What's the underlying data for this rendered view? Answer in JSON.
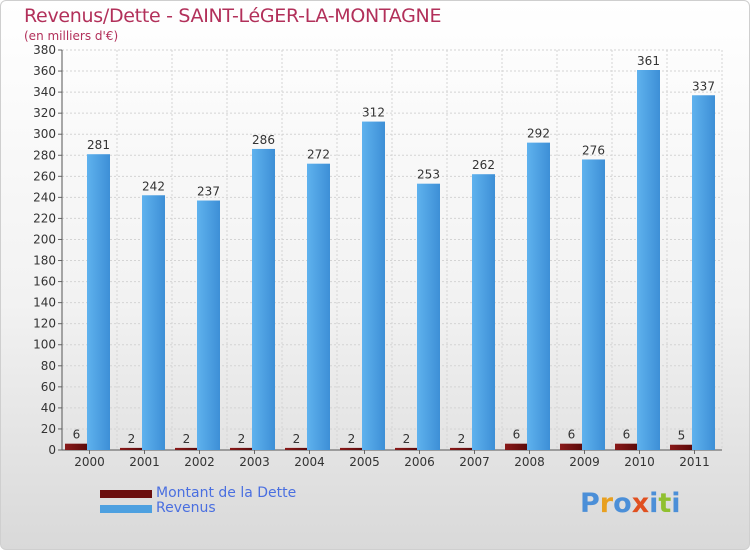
{
  "header": {
    "title": "Revenus/Dette - SAINT-LéGER-LA-MONTAGNE",
    "subtitle": "(en milliers d'€)"
  },
  "legend": {
    "items": [
      {
        "label": "Montant de la Dette",
        "color": "#6b0f0f"
      },
      {
        "label": "Revenus",
        "color": "#4da0e0"
      }
    ]
  },
  "logo": {
    "text": "Proxiti",
    "letter_colors": [
      "#4b8fd8",
      "#e8a020",
      "#4b8fd8",
      "#e05020",
      "#4b8fd8",
      "#90c030",
      "#4b8fd8"
    ]
  },
  "chart_data": {
    "type": "bar",
    "title": "Revenus/Dette - SAINT-LéGER-LA-MONTAGNE",
    "ylabel": "(en milliers d'€)",
    "xlabel": "",
    "categories": [
      "2000",
      "2001",
      "2002",
      "2003",
      "2004",
      "2005",
      "2006",
      "2007",
      "2008",
      "2009",
      "2010",
      "2011"
    ],
    "series": [
      {
        "name": "Montant de la Dette",
        "color": "#6b0f0f",
        "values": [
          6,
          2,
          2,
          2,
          2,
          2,
          2,
          2,
          6,
          6,
          6,
          5
        ]
      },
      {
        "name": "Revenus",
        "color": "#4da0e0",
        "values": [
          281,
          242,
          237,
          286,
          272,
          312,
          253,
          262,
          292,
          276,
          361,
          337
        ]
      }
    ],
    "ylim": [
      0,
      380
    ],
    "yticks": [
      0,
      20,
      40,
      60,
      80,
      100,
      120,
      140,
      160,
      180,
      200,
      220,
      240,
      260,
      280,
      300,
      320,
      340,
      360,
      380
    ],
    "grid": true,
    "legend_position": "bottom-left"
  }
}
